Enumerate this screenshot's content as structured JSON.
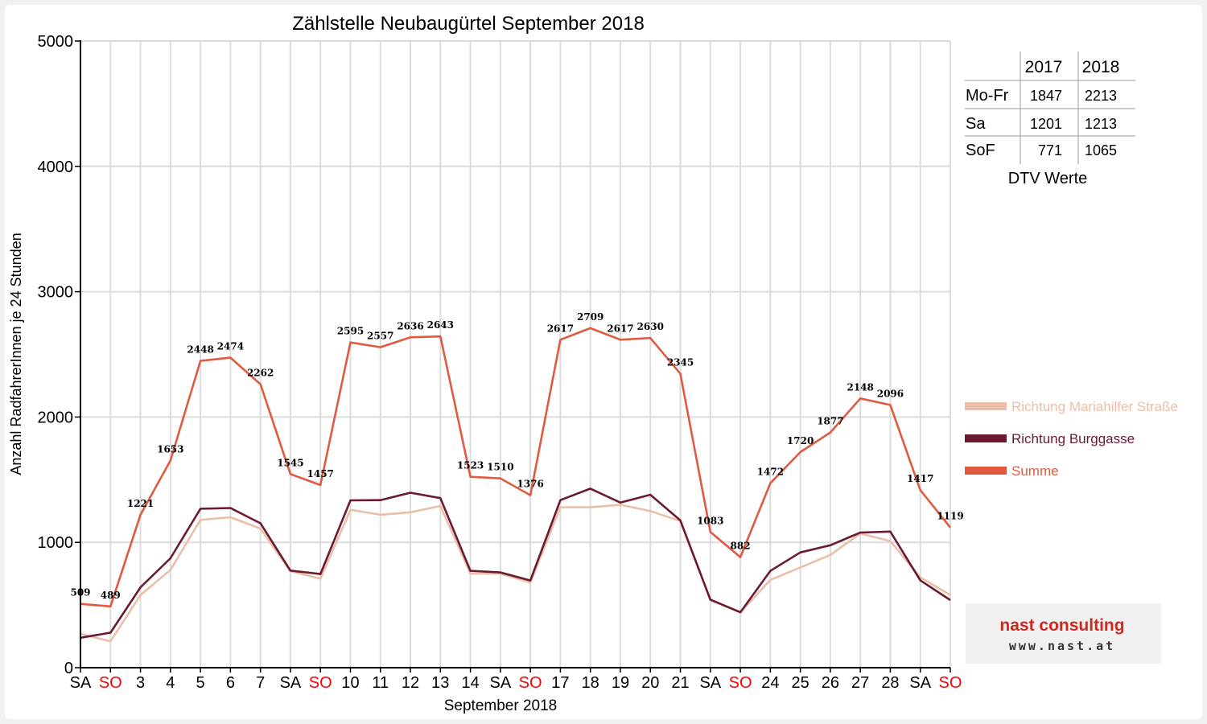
{
  "chart_data": {
    "type": "line",
    "title": "Zählstelle Neubaugürtel September 2018",
    "xlabel": "September 2018",
    "ylabel": "Anzahl RadfahrerInnen je 24 Stunden",
    "ylim": [
      0,
      5000
    ],
    "yticks": [
      "0",
      "1000",
      "2000",
      "3000",
      "4000",
      "5000"
    ],
    "grid": true,
    "legend_position": "right",
    "categories": [
      "SA",
      "SO",
      "3",
      "4",
      "5",
      "6",
      "7",
      "SA",
      "SO",
      "10",
      "11",
      "12",
      "13",
      "14",
      "SA",
      "SO",
      "17",
      "18",
      "19",
      "20",
      "21",
      "SA",
      "SO",
      "24",
      "25",
      "26",
      "27",
      "28",
      "SA",
      "SO"
    ],
    "weekend_color": "#ff0000",
    "weekend_flags": [
      false,
      true,
      false,
      false,
      false,
      false,
      false,
      false,
      true,
      false,
      false,
      false,
      false,
      false,
      false,
      true,
      false,
      false,
      false,
      false,
      false,
      false,
      true,
      false,
      false,
      false,
      false,
      false,
      false,
      true
    ],
    "series": [
      {
        "name": "Richtung Mariahilfer Straße",
        "color": "#e9bfa9",
        "values": [
          270,
          210,
          580,
          780,
          1180,
          1200,
          1110,
          770,
          710,
          1260,
          1220,
          1240,
          1290,
          750,
          750,
          680,
          1280,
          1280,
          1300,
          1250,
          1170,
          540,
          440,
          700,
          800,
          900,
          1070,
          1010,
          720,
          580
        ]
      },
      {
        "name": "Richtung Burggasse",
        "color": "#6b1a30",
        "values": [
          239,
          279,
          641,
          873,
          1268,
          1274,
          1152,
          775,
          747,
          1335,
          1337,
          1396,
          1353,
          773,
          760,
          696,
          1337,
          1429,
          1317,
          1380,
          1175,
          543,
          442,
          772,
          920,
          977,
          1078,
          1086,
          697,
          539
        ]
      },
      {
        "name": "Summe",
        "color": "#e05a40",
        "values": [
          509,
          489,
          1221,
          1653,
          2448,
          2474,
          2262,
          1545,
          1457,
          2595,
          2557,
          2636,
          2643,
          1523,
          1510,
          1376,
          2617,
          2709,
          2617,
          2630,
          2345,
          1083,
          882,
          1472,
          1720,
          1877,
          2148,
          2096,
          1417,
          1119
        ]
      }
    ],
    "data_labels": [
      "509",
      "489",
      "1221",
      "1653",
      "2448",
      "2474",
      "2262",
      "1545",
      "1457",
      "2595",
      "2557",
      "2636",
      "2643",
      "1523",
      "1510",
      "1376",
      "2617",
      "2709",
      "2617",
      "2630",
      "2345",
      "1083",
      "882",
      "1472",
      "1720",
      "1877",
      "2148",
      "2096",
      "1417",
      "1119"
    ]
  },
  "dtv_table": {
    "caption": "DTV Werte",
    "columns": [
      "2017",
      "2018"
    ],
    "rows": [
      {
        "label": "Mo-Fr",
        "v2017": "1847",
        "v2018": "2213"
      },
      {
        "label": "Sa",
        "v2017": "1201",
        "v2018": "1213"
      },
      {
        "label": "SoF",
        "v2017": "771",
        "v2018": "1065"
      }
    ]
  },
  "logo": {
    "name": "nast consulting",
    "url": "www.nast.at",
    "text_color": "#cc2a1e"
  }
}
